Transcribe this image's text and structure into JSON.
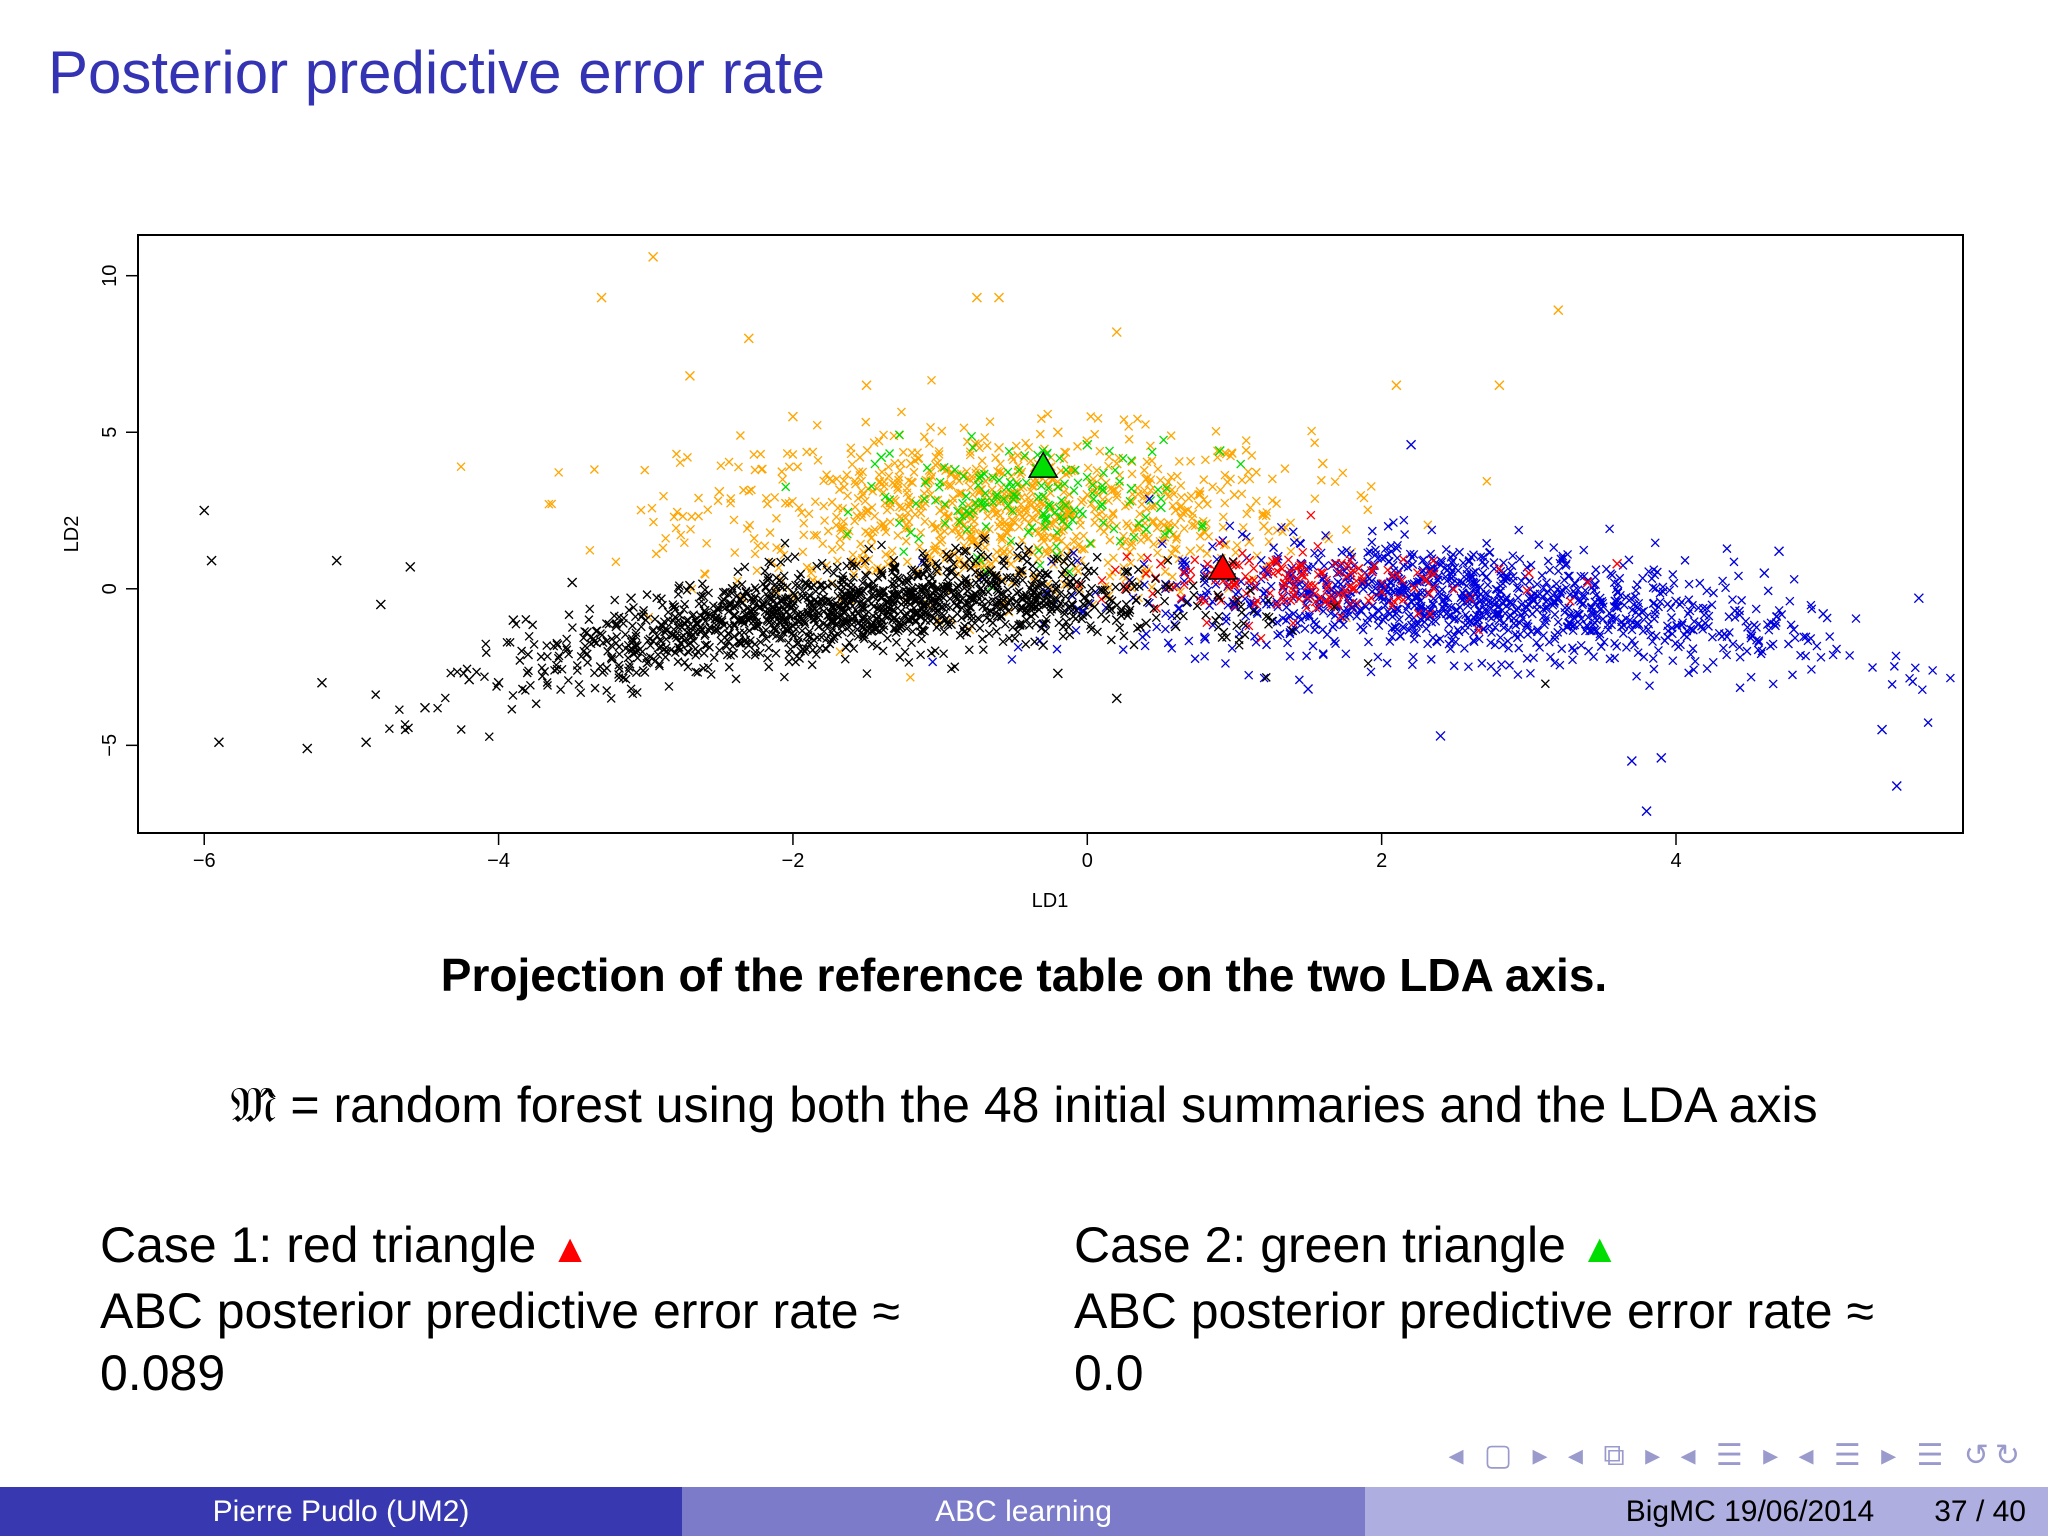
{
  "slide": {
    "title": "Posterior predictive error rate",
    "caption": "Projection of the reference table on the two LDA axis.",
    "formula_symbol": "𝔐̂",
    "formula_equals": "=",
    "formula_text": "random forest using both the 48 initial summaries and the LDA axis"
  },
  "cases": [
    {
      "label": "Case 1: red triangle",
      "marker": "▲",
      "line2": "ABC posterior predictive error rate ≈",
      "value": "0.089"
    },
    {
      "label": "Case 2: green triangle",
      "marker": "▲",
      "line2": "ABC posterior predictive error rate ≈",
      "value": "0.0"
    }
  ],
  "nav_icons": "◂ ▢ ▸ ◂ ⧉ ▸ ◂ ☰ ▸ ◂ ☰ ▸ ☰ ↺↻",
  "footer": {
    "author": "Pierre Pudlo  (UM2)",
    "talk": "ABC learning",
    "event": "BigMC 19/06/2014",
    "page": "37 / 40"
  },
  "colors": {
    "title": "#3333b3",
    "black_class": "#000000",
    "orange_class": "#ffa500",
    "green_class": "#00dd00",
    "red_class": "#ff0000",
    "blue_class": "#0000dd"
  },
  "chart_data": {
    "type": "scatter",
    "title": "",
    "xlabel": "LD1",
    "ylabel": "LD2",
    "xlim": [
      -6.45,
      5.95
    ],
    "ylim": [
      -7.8,
      11.3
    ],
    "xticks": [
      -6,
      -4,
      -2,
      0,
      2,
      4
    ],
    "yticks": [
      -5,
      0,
      5,
      10
    ],
    "xtick_labels": [
      "−6",
      "−4",
      "−2",
      "0",
      "2",
      "4"
    ],
    "ytick_labels": [
      "−5",
      "0",
      "5",
      "10"
    ],
    "marker": "x",
    "series": [
      {
        "name": "black",
        "color": "#000000",
        "x": [
          -6.0,
          -5.95,
          -5.9,
          -5.3,
          -5.1,
          -4.8,
          -4.6,
          -4.5,
          -4.2,
          -4.0,
          -3.8,
          -3.6,
          -3.4,
          -3.2,
          -3.0,
          -2.8,
          -2.6,
          -2.4,
          -2.2,
          -2.0,
          -1.8,
          -1.6,
          -1.4,
          -1.2,
          -1.0,
          -0.8,
          -0.6,
          -0.4,
          -0.2,
          0.0,
          0.2,
          0.4,
          0.6,
          -3.9,
          -3.5,
          -3.1,
          -2.7,
          -2.3,
          -1.9,
          -1.5,
          -1.1,
          -0.7,
          -0.3,
          0.2,
          -4.9,
          -5.2,
          -0.2
        ],
        "y": [
          2.5,
          0.9,
          -4.9,
          -5.1,
          0.9,
          -0.5,
          0.7,
          -3.8,
          -2.9,
          -3.0,
          -2.1,
          -1.8,
          -1.4,
          -1.2,
          -1.0,
          -0.9,
          -0.7,
          -0.6,
          -0.5,
          -0.4,
          -0.4,
          -0.3,
          -0.3,
          -0.2,
          -0.2,
          -0.3,
          -0.4,
          -0.5,
          -0.6,
          -0.8,
          -1.0,
          -1.1,
          -1.2,
          -1.0,
          0.2,
          -0.3,
          0.1,
          -1.8,
          -1.5,
          0.4,
          -1.0,
          0.3,
          -1.8,
          -3.5,
          -4.9,
          -3.0,
          -2.7
        ]
      },
      {
        "name": "orange",
        "color": "#ffa500",
        "x": [
          -2.95,
          -3.3,
          -2.3,
          -2.7,
          -0.75,
          -0.6,
          0.2,
          3.2,
          -2.5,
          -2.0,
          -1.5,
          -1.2,
          -1.0,
          -0.8,
          -0.6,
          -0.4,
          -0.2,
          0.0,
          0.2,
          0.4,
          0.6,
          0.8,
          1.0,
          1.2,
          -1.4,
          -1.0,
          -0.6,
          -0.2,
          0.3,
          0.7,
          1.1,
          1.6,
          2.1,
          2.8
        ],
        "y": [
          10.6,
          9.3,
          8.0,
          6.8,
          9.3,
          9.3,
          8.2,
          8.9,
          3.1,
          5.5,
          6.5,
          4.0,
          2.5,
          3.5,
          4.5,
          2.9,
          5.0,
          3.0,
          4.0,
          3.5,
          2.5,
          1.8,
          3.0,
          2.0,
          2.0,
          1.5,
          2.0,
          1.6,
          1.4,
          1.2,
          1.5,
          4.0,
          6.5,
          6.5
        ]
      },
      {
        "name": "green",
        "color": "#00dd00",
        "x": [
          -1.4,
          -1.1,
          -0.9,
          -0.7,
          -0.5,
          -0.3,
          -0.1,
          0.1,
          0.3,
          0.5,
          0.9,
          -1.2,
          -0.8,
          -0.4,
          0.0,
          0.4
        ],
        "y": [
          4.2,
          3.4,
          3.8,
          2.6,
          3.0,
          2.4,
          2.2,
          2.7,
          3.2,
          2.6,
          4.4,
          1.8,
          2.4,
          1.8,
          4.6,
          1.9
        ]
      },
      {
        "name": "red",
        "color": "#ff0000",
        "x": [
          0.5,
          0.7,
          0.9,
          1.0,
          1.2,
          1.4,
          1.6,
          1.8,
          2.0,
          2.3,
          2.6,
          3.0,
          3.4,
          3.6,
          0.8,
          1.1,
          1.5
        ],
        "y": [
          0.8,
          0.3,
          0.6,
          0.1,
          0.4,
          -0.2,
          0.5,
          0.0,
          -0.1,
          0.3,
          -0.3,
          0.5,
          0.2,
          0.8,
          -0.4,
          0.9,
          0.1
        ]
      },
      {
        "name": "blue",
        "color": "#0000dd",
        "x": [
          0.8,
          1.0,
          1.2,
          1.4,
          1.6,
          1.8,
          2.0,
          2.2,
          2.4,
          2.6,
          2.8,
          3.0,
          3.2,
          3.4,
          3.6,
          3.8,
          4.0,
          4.2,
          4.4,
          4.6,
          4.8,
          5.0,
          5.4,
          5.5,
          5.65,
          3.8,
          3.9,
          3.7,
          2.4,
          4.7,
          2.2,
          0.8,
          1.5
        ],
        "y": [
          0.2,
          -0.5,
          0.6,
          -0.8,
          0.3,
          -0.6,
          0.1,
          -0.4,
          -0.8,
          -0.2,
          -1.0,
          -0.5,
          -0.3,
          -1.2,
          -0.6,
          -0.9,
          -0.4,
          -1.1,
          -0.7,
          0.5,
          -1.3,
          -0.8,
          -4.5,
          -6.3,
          -0.3,
          -7.1,
          -5.4,
          -5.5,
          -4.7,
          1.2,
          4.6,
          -1.6,
          -3.2
        ]
      }
    ],
    "highlights": [
      {
        "label": "red triangle",
        "shape": "triangle",
        "color": "#ff0000",
        "x": 0.92,
        "y": 0.65
      },
      {
        "label": "green triangle",
        "shape": "triangle",
        "color": "#00dd00",
        "x": -0.3,
        "y": 3.9
      }
    ]
  }
}
